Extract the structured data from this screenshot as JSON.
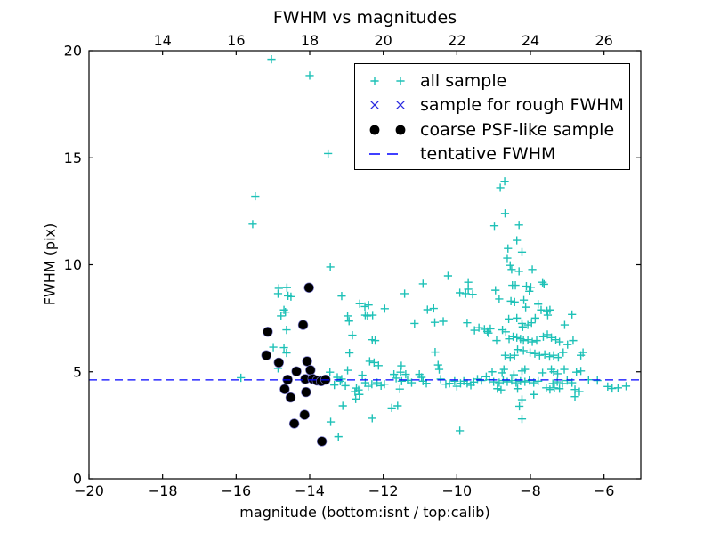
{
  "figure": {
    "title": "FWHM vs magnitudes",
    "xlabel": "magnitude (bottom:isnt / top:calib)",
    "ylabel": "FWHM (pix)"
  },
  "colors": {
    "all_sample": "#1ec1b7",
    "rough_fwhm": "#2a2ae0",
    "coarse": "#000000",
    "tentative": "#0000ff",
    "frame": "#000000"
  },
  "legend": {
    "items": [
      {
        "label": "all sample",
        "marker": "plus",
        "color_key": "all_sample"
      },
      {
        "label": "sample for rough FWHM",
        "marker": "x",
        "color_key": "rough_fwhm"
      },
      {
        "label": "coarse PSF-like sample",
        "marker": "dot",
        "color_key": "coarse"
      },
      {
        "label": "tentative FWHM",
        "marker": "dash",
        "color_key": "tentative"
      }
    ]
  },
  "chart_data": {
    "type": "scatter",
    "title": "FWHM vs magnitudes",
    "xlabel": "magnitude (bottom:isnt / top:calib)",
    "ylabel": "FWHM (pix)",
    "xlim": [
      -20,
      -5
    ],
    "ylim": [
      0,
      20
    ],
    "x_ticks_bottom": {
      "values": [
        -20,
        -18,
        -16,
        -14,
        -12,
        -10,
        -8,
        -6
      ],
      "labels": [
        "−20",
        "−18",
        "−16",
        "−14",
        "−12",
        "−10",
        "−8",
        "−6"
      ]
    },
    "x_ticks_top": {
      "values": [
        14,
        16,
        18,
        20,
        22,
        24,
        26
      ],
      "labels": [
        "14",
        "16",
        "18",
        "20",
        "22",
        "24",
        "26"
      ],
      "mag_offset": 32
    },
    "y_ticks": {
      "values": [
        0,
        5,
        10,
        15,
        20
      ],
      "labels": [
        "0",
        "5",
        "10",
        "15",
        "20"
      ]
    },
    "tentative_fwhm": 4.62,
    "series": [
      {
        "name": "all sample",
        "marker": "plus",
        "color_key": "all_sample",
        "points": [
          [
            -15.04,
            19.6
          ],
          [
            -14.0,
            18.84
          ],
          [
            -13.5,
            15.2
          ],
          [
            -15.48,
            13.2
          ],
          [
            -15.55,
            11.9
          ],
          [
            -13.44,
            9.9
          ],
          [
            -14.84,
            8.9
          ],
          [
            -14.62,
            8.93
          ],
          [
            -14.86,
            8.65
          ],
          [
            -14.59,
            8.55
          ],
          [
            -14.51,
            8.51
          ],
          [
            -13.13,
            8.54
          ],
          [
            -14.7,
            7.89
          ],
          [
            -14.66,
            7.79
          ],
          [
            -14.78,
            7.61
          ],
          [
            -14.63,
            6.96
          ],
          [
            -14.99,
            6.15
          ],
          [
            -14.7,
            6.13
          ],
          [
            -14.63,
            5.88
          ],
          [
            -14.86,
            5.16
          ],
          [
            -15.87,
            4.72
          ],
          [
            -13.45,
            4.98
          ],
          [
            -13.25,
            4.74
          ],
          [
            -13.13,
            4.66
          ],
          [
            -13.33,
            4.38
          ],
          [
            -13.43,
            2.66
          ],
          [
            -13.22,
            1.97
          ],
          [
            -12.64,
            8.18
          ],
          [
            -12.5,
            8.05
          ],
          [
            -12.4,
            8.12
          ],
          [
            -11.96,
            7.95
          ],
          [
            -12.97,
            7.61
          ],
          [
            -12.93,
            7.37
          ],
          [
            -12.49,
            7.65
          ],
          [
            -12.43,
            7.61
          ],
          [
            -12.29,
            7.65
          ],
          [
            -11.15,
            7.26
          ],
          [
            -10.8,
            7.9
          ],
          [
            -10.63,
            7.96
          ],
          [
            -10.6,
            7.31
          ],
          [
            -10.37,
            7.36
          ],
          [
            -12.84,
            6.71
          ],
          [
            -9.72,
            7.29
          ],
          [
            -9.52,
            6.94
          ],
          [
            -9.17,
            6.89
          ],
          [
            -9.14,
            6.81
          ],
          [
            -12.3,
            6.5
          ],
          [
            -12.22,
            6.46
          ],
          [
            -12.92,
            5.88
          ],
          [
            -10.59,
            5.92
          ],
          [
            -12.37,
            5.49
          ],
          [
            -12.25,
            5.43
          ],
          [
            -12.13,
            5.29
          ],
          [
            -10.51,
            5.32
          ],
          [
            -11.51,
            5.28
          ],
          [
            -12.97,
            5.07
          ],
          [
            -10.92,
            9.11
          ],
          [
            -10.24,
            9.48
          ],
          [
            -9.69,
            9.18
          ],
          [
            -9.69,
            8.86
          ],
          [
            -9.92,
            8.69
          ],
          [
            -9.76,
            8.65
          ],
          [
            -9.57,
            8.62
          ],
          [
            -11.42,
            8.65
          ],
          [
            -13.17,
            4.56
          ],
          [
            -13.03,
            4.35
          ],
          [
            -12.73,
            4.24
          ],
          [
            -12.67,
            4.15
          ],
          [
            -12.57,
            4.84
          ],
          [
            -12.49,
            4.49
          ],
          [
            -12.41,
            4.32
          ],
          [
            -12.31,
            4.42
          ],
          [
            -12.17,
            4.49
          ],
          [
            -12.06,
            4.35
          ],
          [
            -11.97,
            4.42
          ],
          [
            -11.71,
            4.88
          ],
          [
            -11.65,
            4.7
          ],
          [
            -11.53,
            4.98
          ],
          [
            -11.5,
            4.56
          ],
          [
            -11.39,
            4.88
          ],
          [
            -11.34,
            4.6
          ],
          [
            -11.55,
            4.19
          ],
          [
            -11.23,
            4.49
          ],
          [
            -11.02,
            4.88
          ],
          [
            -10.96,
            4.74
          ],
          [
            -10.92,
            4.56
          ],
          [
            -10.83,
            4.46
          ],
          [
            -10.48,
            5.11
          ],
          [
            -10.44,
            4.66
          ],
          [
            -10.3,
            4.42
          ],
          [
            -10.2,
            4.46
          ],
          [
            -10.06,
            4.56
          ],
          [
            -10.0,
            4.32
          ],
          [
            -9.9,
            4.46
          ],
          [
            -9.81,
            4.56
          ],
          [
            -9.72,
            4.46
          ],
          [
            -9.62,
            4.37
          ],
          [
            -9.54,
            4.52
          ],
          [
            -9.44,
            4.66
          ],
          [
            -12.77,
            4.07
          ],
          [
            -12.65,
            3.94
          ],
          [
            -12.75,
            3.73
          ],
          [
            -13.1,
            3.41
          ],
          [
            -11.77,
            3.31
          ],
          [
            -11.61,
            3.41
          ],
          [
            -12.3,
            2.83
          ],
          [
            -9.92,
            2.25
          ],
          [
            -8.7,
            13.9
          ],
          [
            -8.82,
            13.6
          ],
          [
            -8.69,
            12.4
          ],
          [
            -8.98,
            11.82
          ],
          [
            -8.31,
            11.86
          ],
          [
            -8.37,
            11.14
          ],
          [
            -8.61,
            10.76
          ],
          [
            -8.23,
            10.59
          ],
          [
            -8.63,
            10.31
          ],
          [
            -8.55,
            9.97
          ],
          [
            -8.51,
            9.78
          ],
          [
            -8.31,
            9.69
          ],
          [
            -7.95,
            9.78
          ],
          [
            -8.95,
            8.81
          ],
          [
            -8.49,
            9.04
          ],
          [
            -8.41,
            9.04
          ],
          [
            -8.11,
            9.0
          ],
          [
            -7.99,
            8.95
          ],
          [
            -7.67,
            9.18
          ],
          [
            -7.63,
            9.09
          ],
          [
            -8.85,
            8.4
          ],
          [
            -8.53,
            8.3
          ],
          [
            -8.43,
            8.26
          ],
          [
            -8.18,
            8.35
          ],
          [
            -8.13,
            8.02
          ],
          [
            -8.03,
            8.76
          ],
          [
            -7.79,
            8.16
          ],
          [
            -7.71,
            7.89
          ],
          [
            -7.55,
            7.85
          ],
          [
            -7.47,
            7.89
          ],
          [
            -8.59,
            7.47
          ],
          [
            -8.37,
            7.51
          ],
          [
            -8.23,
            7.26
          ],
          [
            -8.21,
            7.1
          ],
          [
            -8.07,
            7.19
          ],
          [
            -7.97,
            7.29
          ],
          [
            -7.87,
            7.51
          ],
          [
            -7.53,
            7.65
          ],
          [
            -7.07,
            7.19
          ],
          [
            -6.87,
            7.68
          ],
          [
            -9.25,
            6.99
          ],
          [
            -9.09,
            7.01
          ],
          [
            -9.4,
            7.06
          ],
          [
            -8.92,
            6.46
          ],
          [
            -8.76,
            6.96
          ],
          [
            -8.67,
            6.87
          ],
          [
            -8.58,
            6.54
          ],
          [
            -8.47,
            6.64
          ],
          [
            -8.37,
            6.6
          ],
          [
            -8.27,
            6.54
          ],
          [
            -8.19,
            6.46
          ],
          [
            -8.07,
            6.5
          ],
          [
            -7.95,
            6.4
          ],
          [
            -7.83,
            6.46
          ],
          [
            -7.65,
            6.64
          ],
          [
            -7.54,
            6.74
          ],
          [
            -7.43,
            6.6
          ],
          [
            -7.31,
            6.5
          ],
          [
            -7.21,
            6.4
          ],
          [
            -7.11,
            5.9
          ],
          [
            -6.99,
            6.27
          ],
          [
            -6.84,
            6.46
          ],
          [
            -8.35,
            6.04
          ],
          [
            -8.19,
            5.99
          ],
          [
            -8.01,
            5.9
          ],
          [
            -7.88,
            5.85
          ],
          [
            -7.75,
            5.77
          ],
          [
            -7.61,
            5.81
          ],
          [
            -7.48,
            5.71
          ],
          [
            -7.37,
            5.77
          ],
          [
            -7.24,
            5.67
          ],
          [
            -8.43,
            5.77
          ],
          [
            -8.55,
            5.67
          ],
          [
            -8.69,
            5.77
          ],
          [
            -6.63,
            5.77
          ],
          [
            -6.57,
            5.9
          ],
          [
            -9.2,
            4.77
          ],
          [
            -9.04,
            5.0
          ],
          [
            -8.77,
            4.95
          ],
          [
            -8.72,
            5.11
          ],
          [
            -8.45,
            4.86
          ],
          [
            -8.23,
            5.04
          ],
          [
            -8.15,
            5.11
          ],
          [
            -7.67,
            4.95
          ],
          [
            -7.43,
            5.11
          ],
          [
            -7.37,
            5.0
          ],
          [
            -7.26,
            4.91
          ],
          [
            -7.08,
            5.11
          ],
          [
            -6.75,
            4.98
          ],
          [
            -6.63,
            5.04
          ],
          [
            -9.33,
            4.59
          ],
          [
            -9.12,
            4.63
          ],
          [
            -9.0,
            4.53
          ],
          [
            -8.85,
            4.49
          ],
          [
            -8.74,
            4.59
          ],
          [
            -8.63,
            4.53
          ],
          [
            -8.51,
            4.59
          ],
          [
            -8.39,
            4.49
          ],
          [
            -8.27,
            4.56
          ],
          [
            -8.15,
            4.53
          ],
          [
            -8.03,
            4.59
          ],
          [
            -7.91,
            4.49
          ],
          [
            -7.79,
            4.56
          ],
          [
            -7.39,
            4.45
          ],
          [
            -7.27,
            4.53
          ],
          [
            -7.13,
            4.45
          ],
          [
            -7.0,
            4.59
          ],
          [
            -6.87,
            4.49
          ],
          [
            -6.42,
            4.63
          ],
          [
            -6.18,
            4.59
          ],
          [
            -8.9,
            4.21
          ],
          [
            -8.8,
            4.15
          ],
          [
            -8.35,
            4.21
          ],
          [
            -7.57,
            4.25
          ],
          [
            -7.47,
            4.17
          ],
          [
            -7.35,
            4.25
          ],
          [
            -7.21,
            4.21
          ],
          [
            -6.79,
            4.17
          ],
          [
            -6.67,
            4.07
          ],
          [
            -5.9,
            4.31
          ],
          [
            -5.78,
            4.22
          ],
          [
            -5.62,
            4.25
          ],
          [
            -5.4,
            4.33
          ],
          [
            -7.91,
            3.94
          ],
          [
            -6.79,
            3.84
          ],
          [
            -8.23,
            3.7
          ],
          [
            -8.3,
            3.39
          ],
          [
            -8.23,
            2.8
          ]
        ]
      },
      {
        "name": "sample for rough FWHM",
        "marker": "x",
        "color_key": "rough_fwhm",
        "points": [
          [
            -14.02,
            8.93
          ],
          [
            -14.18,
            7.19
          ],
          [
            -15.14,
            6.87
          ],
          [
            -15.18,
            5.77
          ],
          [
            -14.84,
            5.43
          ],
          [
            -14.36,
            5.02
          ],
          [
            -14.07,
            5.49
          ],
          [
            -13.98,
            5.08
          ],
          [
            -14.6,
            4.63
          ],
          [
            -14.12,
            4.66
          ],
          [
            -13.92,
            4.67
          ],
          [
            -13.8,
            4.59
          ],
          [
            -13.69,
            4.56
          ],
          [
            -13.57,
            4.63
          ],
          [
            -14.68,
            4.19
          ],
          [
            -14.52,
            3.8
          ],
          [
            -14.1,
            4.05
          ],
          [
            -14.14,
            2.99
          ],
          [
            -14.42,
            2.58
          ],
          [
            -13.67,
            1.75
          ]
        ]
      },
      {
        "name": "coarse PSF-like sample",
        "marker": "dot",
        "color_key": "coarse",
        "points": [
          [
            -14.02,
            8.93
          ],
          [
            -14.18,
            7.19
          ],
          [
            -15.14,
            6.87
          ],
          [
            -15.18,
            5.77
          ],
          [
            -14.84,
            5.43
          ],
          [
            -14.36,
            5.02
          ],
          [
            -14.07,
            5.49
          ],
          [
            -13.98,
            5.08
          ],
          [
            -14.6,
            4.63
          ],
          [
            -14.12,
            4.66
          ],
          [
            -13.92,
            4.67
          ],
          [
            -13.8,
            4.59
          ],
          [
            -13.69,
            4.56
          ],
          [
            -13.57,
            4.63
          ],
          [
            -14.68,
            4.19
          ],
          [
            -14.52,
            3.8
          ],
          [
            -14.1,
            4.05
          ],
          [
            -14.14,
            2.99
          ],
          [
            -14.42,
            2.58
          ],
          [
            -13.67,
            1.75
          ]
        ]
      },
      {
        "name": "tentative FWHM",
        "marker": "dashed-line",
        "color_key": "tentative",
        "hline_y": 4.62
      }
    ]
  }
}
